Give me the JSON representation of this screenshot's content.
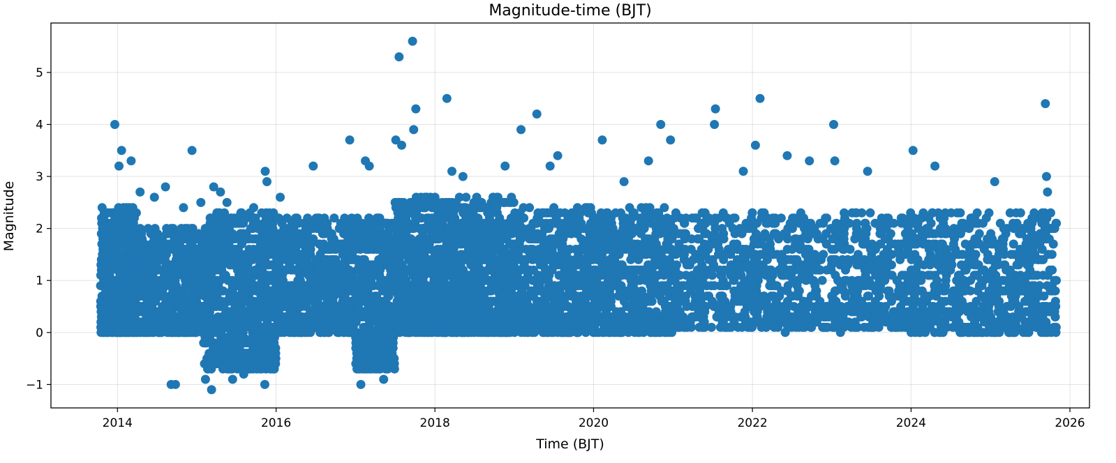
{
  "chart_data": {
    "type": "scatter",
    "title": "Magnitude-time (BJT)",
    "xlabel": "Time (BJT)",
    "ylabel": "Magnitude",
    "xlim": [
      "2013-03-01",
      "2026-04-01"
    ],
    "ylim": [
      -1.45,
      5.95
    ],
    "x_ticks": [
      "2014",
      "2016",
      "2018",
      "2020",
      "2022",
      "2024",
      "2026"
    ],
    "y_ticks": [
      -1,
      0,
      1,
      2,
      3,
      4,
      5
    ],
    "y_tick_labels": [
      "−1",
      "0",
      "1",
      "2",
      "3",
      "4",
      "5"
    ],
    "grid": true,
    "marker_color": "#1f77b4",
    "series": [
      {
        "points": [
          [
            "2013-10-20",
            2.2
          ],
          [
            "2013-11-15",
            1.9
          ],
          [
            "2013-12-20",
            4.0
          ],
          [
            "2014-01-08",
            3.2
          ],
          [
            "2014-01-20",
            3.5
          ],
          [
            "2014-03-05",
            3.3
          ],
          [
            "2014-04-15",
            2.7
          ],
          [
            "2014-06-20",
            2.6
          ],
          [
            "2014-08-10",
            2.8
          ],
          [
            "2014-09-05",
            -1.0
          ],
          [
            "2014-09-25",
            -1.0
          ],
          [
            "2014-12-10",
            3.5
          ],
          [
            "2014-11-01",
            2.4
          ],
          [
            "2015-01-20",
            2.5
          ],
          [
            "2015-02-10",
            -0.9
          ],
          [
            "2015-03-10",
            -1.1
          ],
          [
            "2015-03-20",
            2.8
          ],
          [
            "2015-04-20",
            2.7
          ],
          [
            "2015-05-20",
            2.5
          ],
          [
            "2015-06-15",
            -0.9
          ],
          [
            "2015-07-10",
            -0.6
          ],
          [
            "2015-08-05",
            -0.8
          ],
          [
            "2015-09-20",
            2.4
          ],
          [
            "2015-10-20",
            -0.6
          ],
          [
            "2015-11-10",
            -1.0
          ],
          [
            "2015-11-12",
            3.1
          ],
          [
            "2015-11-20",
            2.9
          ],
          [
            "2016-01-20",
            2.6
          ],
          [
            "2016-06-20",
            3.2
          ],
          [
            "2016-12-05",
            3.7
          ],
          [
            "2017-01-25",
            -1.0
          ],
          [
            "2017-02-15",
            3.3
          ],
          [
            "2017-03-05",
            3.2
          ],
          [
            "2017-04-20",
            -0.6
          ],
          [
            "2017-05-10",
            -0.9
          ],
          [
            "2017-07-05",
            3.7
          ],
          [
            "2017-07-20",
            5.3
          ],
          [
            "2017-08-01",
            3.6
          ],
          [
            "2017-09-20",
            5.6
          ],
          [
            "2017-10-05",
            4.3
          ],
          [
            "2017-09-25",
            3.9
          ],
          [
            "2018-02-25",
            4.5
          ],
          [
            "2018-03-20",
            3.1
          ],
          [
            "2018-05-10",
            3.0
          ],
          [
            "2018-11-20",
            3.2
          ],
          [
            "2019-02-01",
            3.9
          ],
          [
            "2019-04-15",
            4.2
          ],
          [
            "2019-06-15",
            3.2
          ],
          [
            "2019-07-20",
            3.4
          ],
          [
            "2020-02-10",
            3.7
          ],
          [
            "2020-05-20",
            2.9
          ],
          [
            "2020-09-10",
            3.3
          ],
          [
            "2020-11-05",
            4.0
          ],
          [
            "2020-12-20",
            3.7
          ],
          [
            "2021-07-10",
            4.0
          ],
          [
            "2021-07-15",
            4.3
          ],
          [
            "2021-11-20",
            3.1
          ],
          [
            "2022-01-15",
            3.6
          ],
          [
            "2022-02-05",
            4.5
          ],
          [
            "2022-06-10",
            3.4
          ],
          [
            "2022-09-20",
            3.3
          ],
          [
            "2023-01-10",
            4.0
          ],
          [
            "2023-01-15",
            3.3
          ],
          [
            "2023-06-15",
            3.1
          ],
          [
            "2024-01-10",
            3.5
          ],
          [
            "2024-04-20",
            3.2
          ],
          [
            "2025-09-10",
            4.4
          ],
          [
            "2025-09-15",
            3.0
          ],
          [
            "2025-09-20",
            2.7
          ],
          [
            "2025-01-20",
            2.9
          ],
          [
            "2023-02-10",
            0.0
          ],
          [
            "2024-05-10",
            0.0
          ],
          [
            "2022-06-01",
            0.0
          ],
          [
            "2021-01-10",
            0.1
          ]
        ],
        "dense_bands": [
          {
            "from": "2013-10-15",
            "to": "2014-03-31",
            "min": 0.0,
            "max": 2.4,
            "per_month": 90
          },
          {
            "from": "2014-04-01",
            "to": "2015-01-31",
            "min": 0.0,
            "max": 2.0,
            "per_month": 60
          },
          {
            "from": "2015-02-01",
            "to": "2015-12-31",
            "min": -0.7,
            "max": 2.3,
            "per_month": 70
          },
          {
            "from": "2016-01-01",
            "to": "2016-12-31",
            "min": 0.0,
            "max": 2.2,
            "per_month": 55
          },
          {
            "from": "2017-01-01",
            "to": "2017-06-30",
            "min": -0.7,
            "max": 2.2,
            "per_month": 80
          },
          {
            "from": "2017-07-01",
            "to": "2018-12-31",
            "min": 0.0,
            "max": 2.6,
            "per_month": 70
          },
          {
            "from": "2019-01-01",
            "to": "2020-12-31",
            "min": 0.0,
            "max": 2.4,
            "per_month": 45
          },
          {
            "from": "2021-01-01",
            "to": "2023-12-31",
            "min": 0.1,
            "max": 2.3,
            "per_month": 28
          },
          {
            "from": "2024-01-01",
            "to": "2025-10-31",
            "min": 0.0,
            "max": 2.3,
            "per_month": 32
          }
        ]
      }
    ]
  }
}
